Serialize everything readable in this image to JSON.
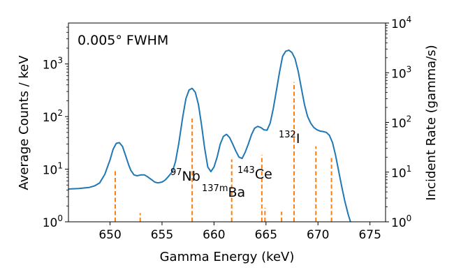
{
  "chart_data": {
    "type": "line",
    "annotation": "0.005° FWHM",
    "xlabel": "Gamma Energy (keV)",
    "ylabel_left": "Average Counts / keV",
    "ylabel_right": "Incident Rate (gamma/s)",
    "xlim": [
      646.0,
      676.5
    ],
    "ylim_left": [
      1,
      6000
    ],
    "ylim_right": [
      1,
      10000
    ],
    "yscale": "log",
    "grid": false,
    "x_ticks": [
      650,
      655,
      660,
      665,
      670,
      675
    ],
    "x_tick_labels": [
      "650",
      "655",
      "660",
      "665",
      "670",
      "675"
    ],
    "y_left_ticks": [
      1,
      10,
      100,
      1000
    ],
    "y_left_tick_labels": [
      {
        "base": "10",
        "exp": "0"
      },
      {
        "base": "10",
        "exp": "1"
      },
      {
        "base": "10",
        "exp": "2"
      },
      {
        "base": "10",
        "exp": "3"
      }
    ],
    "y_right_ticks": [
      1,
      10,
      100,
      1000,
      10000
    ],
    "y_right_tick_labels": [
      {
        "base": "10",
        "exp": "0"
      },
      {
        "base": "10",
        "exp": "1"
      },
      {
        "base": "10",
        "exp": "2"
      },
      {
        "base": "10",
        "exp": "3"
      },
      {
        "base": "10",
        "exp": "4"
      }
    ],
    "series": [
      {
        "axis": "left",
        "style": "line",
        "color": "#1f77b4",
        "x": [
          646.0,
          647.0,
          648.0,
          648.5,
          649.0,
          649.5,
          650.0,
          650.3,
          650.6,
          650.9,
          651.2,
          651.5,
          651.8,
          652.0,
          652.3,
          652.6,
          653.0,
          653.3,
          653.6,
          654.0,
          654.3,
          654.6,
          655.0,
          655.3,
          655.6,
          656.0,
          656.3,
          656.6,
          657.0,
          657.3,
          657.6,
          657.9,
          658.2,
          658.5,
          658.8,
          659.1,
          659.4,
          659.7,
          660.0,
          660.3,
          660.6,
          660.9,
          661.2,
          661.5,
          661.8,
          662.1,
          662.4,
          662.7,
          663.0,
          663.3,
          663.6,
          663.9,
          664.2,
          664.5,
          664.8,
          665.1,
          665.4,
          665.7,
          666.0,
          666.3,
          666.6,
          666.9,
          667.2,
          667.5,
          667.8,
          668.1,
          668.4,
          668.7,
          669.0,
          669.3,
          669.6,
          669.9,
          670.2,
          670.5,
          670.8,
          671.1,
          671.4,
          671.7,
          672.0,
          672.3,
          672.6,
          672.9,
          673.2,
          673.5
        ],
        "y": [
          4.2,
          4.3,
          4.5,
          4.8,
          5.5,
          8,
          15,
          24,
          31,
          32,
          27,
          18,
          12,
          9.5,
          7.8,
          7.5,
          7.8,
          7.8,
          7.2,
          6.3,
          5.7,
          5.5,
          5.7,
          6.2,
          7.2,
          9,
          14,
          30,
          100,
          220,
          320,
          345,
          290,
          170,
          70,
          25,
          11,
          9,
          11,
          17,
          30,
          42,
          46,
          40,
          30,
          22,
          17,
          16,
          21,
          30,
          45,
          60,
          65,
          62,
          56,
          55,
          75,
          140,
          310,
          700,
          1400,
          1750,
          1830,
          1650,
          1250,
          720,
          350,
          170,
          100,
          75,
          62,
          56,
          53,
          52,
          50,
          44,
          32,
          18,
          9,
          4.5,
          2.4,
          1.4,
          0.9,
          0.5
        ]
      },
      {
        "axis": "right",
        "style": "stem",
        "color": "#ff7f0e",
        "x": [
          650.5,
          652.9,
          657.9,
          661.7,
          664.6,
          664.9,
          666.5,
          667.7,
          669.8,
          671.3
        ],
        "y": [
          11,
          1.5,
          120,
          18,
          22,
          1.9,
          1.6,
          650,
          33,
          21
        ]
      }
    ],
    "labels": [
      {
        "mass": "97",
        "element": "Nb"
      },
      {
        "mass": "137m",
        "element": "Ba"
      },
      {
        "mass": "143",
        "element": "Ce"
      },
      {
        "mass": "132",
        "element": "I"
      }
    ]
  }
}
